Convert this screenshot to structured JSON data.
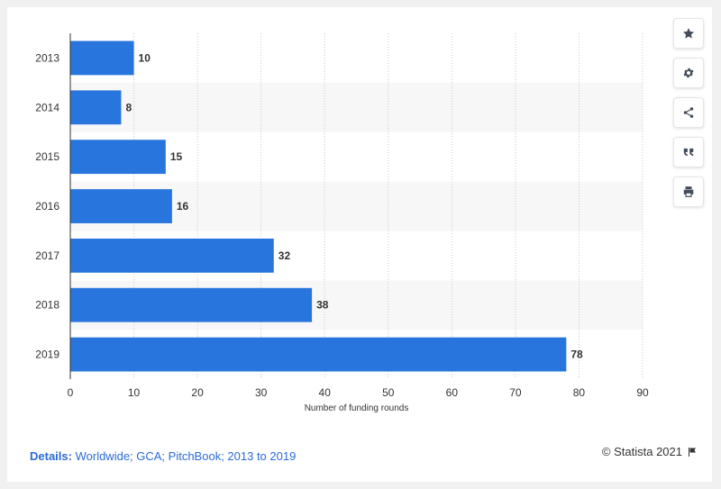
{
  "chart_data": {
    "type": "bar",
    "orientation": "horizontal",
    "categories": [
      "2013",
      "2014",
      "2015",
      "2016",
      "2017",
      "2018",
      "2019"
    ],
    "values": [
      10,
      8,
      15,
      16,
      32,
      38,
      78
    ],
    "xlabel": "Number of funding rounds",
    "ylabel": "",
    "xlim": [
      0,
      90
    ],
    "xticks": [
      0,
      10,
      20,
      30,
      40,
      50,
      60,
      70,
      80,
      90
    ],
    "grid": true,
    "bar_color": "#2876dd"
  },
  "toolbar": {
    "icons": [
      "star-icon",
      "gear-icon",
      "share-icon",
      "quote-icon",
      "print-icon"
    ]
  },
  "footer": {
    "details_label": "Details:",
    "details_value": "Worldwide; GCA; PitchBook; 2013 to 2019",
    "credit": "© Statista 2021",
    "flag_icon": "flag-icon"
  }
}
